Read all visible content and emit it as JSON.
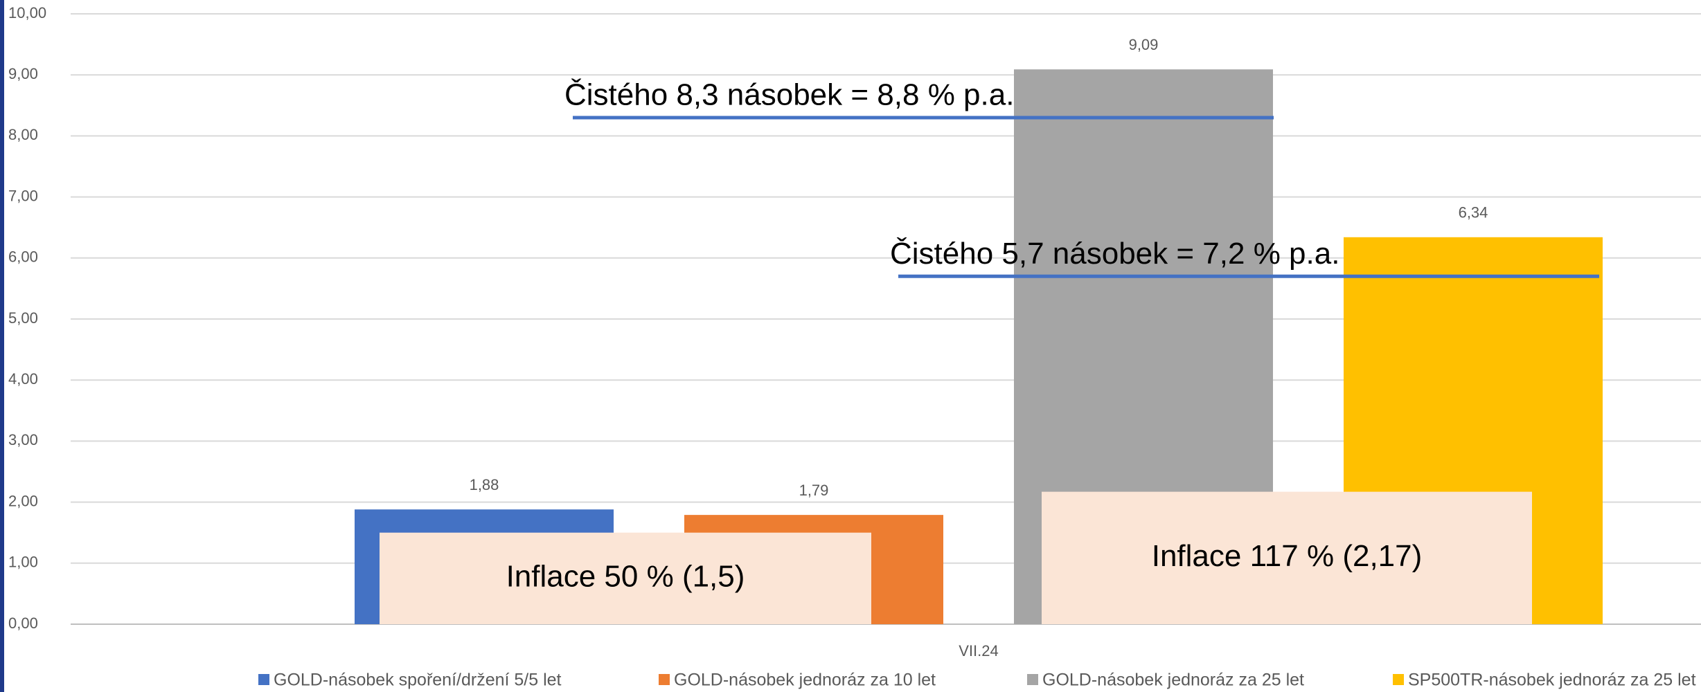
{
  "chart_data": {
    "type": "bar",
    "categories": [
      "VII.24"
    ],
    "series": [
      {
        "name": "GOLD-násobek spoření/držení 5/5 let",
        "color": "#4472c4",
        "values": [
          1.88
        ],
        "value_labels": [
          "1,88"
        ]
      },
      {
        "name": "GOLD-násobek jednoráz za 10 let",
        "color": "#ed7d31",
        "values": [
          1.79
        ],
        "value_labels": [
          "1,79"
        ]
      },
      {
        "name": "GOLD-násobek jednoráz za 25 let",
        "color": "#a5a5a5",
        "values": [
          9.09
        ],
        "value_labels": [
          "9,09"
        ]
      },
      {
        "name": "SP500TR-násobek jednoráz za 25 let",
        "color": "#ffc000",
        "values": [
          6.34
        ],
        "value_labels": [
          "6,34"
        ]
      }
    ],
    "ylim": [
      0,
      10
    ],
    "yticks": [
      {
        "value": 0,
        "label": "0,00"
      },
      {
        "value": 1,
        "label": "1,00"
      },
      {
        "value": 2,
        "label": "2,00"
      },
      {
        "value": 3,
        "label": "3,00"
      },
      {
        "value": 4,
        "label": "4,00"
      },
      {
        "value": 5,
        "label": "5,00"
      },
      {
        "value": 6,
        "label": "6,00"
      },
      {
        "value": 7,
        "label": "7,00"
      },
      {
        "value": 8,
        "label": "8,00"
      },
      {
        "value": 9,
        "label": "9,00"
      },
      {
        "value": 10,
        "label": "10,00"
      }
    ],
    "grid": true,
    "legend": "bottom",
    "reference_lines": [
      {
        "label": "Čistého 8,3 násobek = 8,8 % p.a.",
        "value": 8.3,
        "color": "#4472c4"
      },
      {
        "label": "Čistého 5,7 násobek = 7,2 % p.a.",
        "value": 5.7,
        "color": "#4472c4"
      }
    ],
    "boxes": [
      {
        "label": "Inflace 50 % (1,5)",
        "value": 1.5,
        "color": "#fbe5d6"
      },
      {
        "label": "Inflace 117 % (2,17)",
        "value": 2.17,
        "color": "#fbe5d6"
      }
    ]
  }
}
